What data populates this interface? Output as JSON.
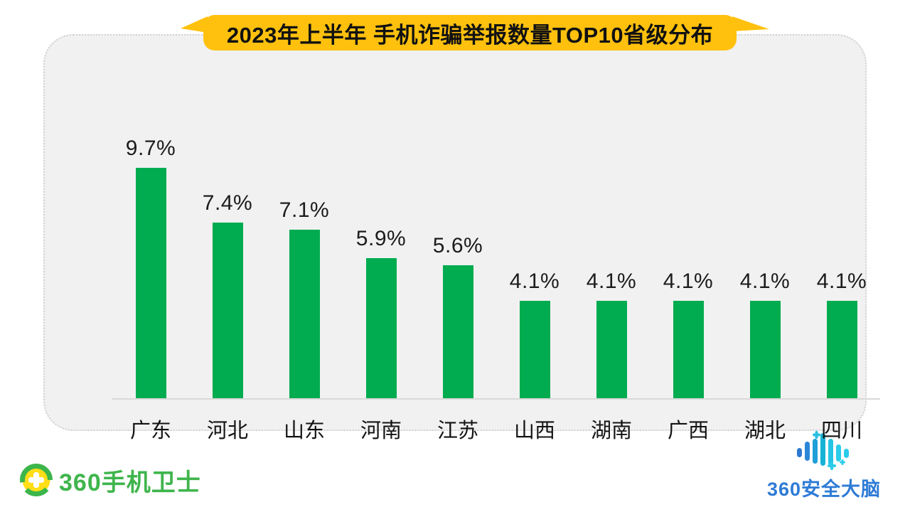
{
  "banner": {
    "title": "2023年上半年 手机诈骗举报数量TOP10省级分布"
  },
  "chart_data": {
    "type": "bar",
    "title": "2023年上半年 手机诈骗举报数量TOP10省级分布",
    "categories": [
      "广东",
      "河北",
      "山东",
      "河南",
      "江苏",
      "山西",
      "湖南",
      "广西",
      "湖北",
      "四川"
    ],
    "values": [
      9.7,
      7.4,
      7.1,
      5.9,
      5.6,
      4.1,
      4.1,
      4.1,
      4.1,
      4.1
    ],
    "value_labels": [
      "9.7%",
      "7.4%",
      "7.1%",
      "5.9%",
      "5.6%",
      "4.1%",
      "4.1%",
      "4.1%",
      "4.1%",
      "4.1%"
    ],
    "xlabel": "",
    "ylabel": "",
    "ylim": [
      0,
      10
    ],
    "unit": "percent",
    "grid": false,
    "legend": null,
    "bar_color": "#00AC4F"
  },
  "footer": {
    "left_logo": {
      "text": "360手机卫士",
      "icon": "360-ball-cross-icon",
      "color": "#3FB54C"
    },
    "right_logo": {
      "text": "360安全大脑",
      "icon": "brainwave-bars-icon",
      "color": "#2E7BD6"
    }
  },
  "colors": {
    "banner_yellow": "#FFC10E",
    "bar_green": "#00AC4F",
    "card_background": "#F1F1F2",
    "axis_line": "#D9D9D9",
    "logo_green": "#3FB54C",
    "logo_blue": "#2E7BD6"
  }
}
